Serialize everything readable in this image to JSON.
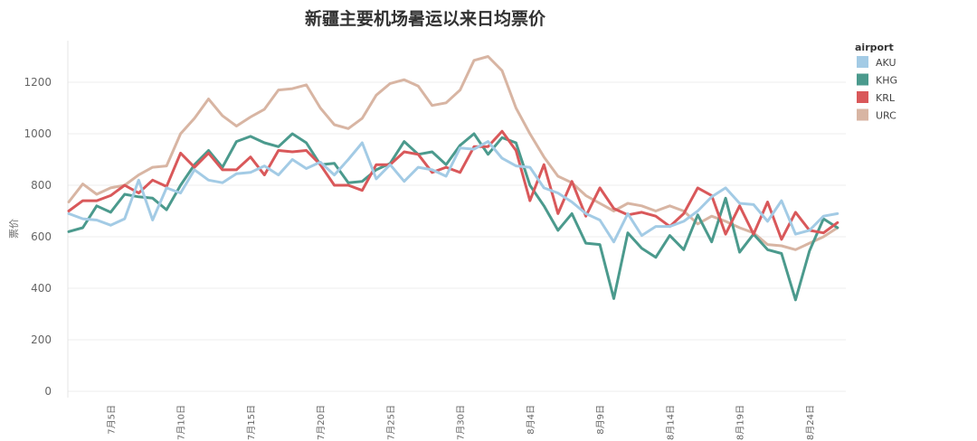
{
  "chart_data": {
    "type": "line",
    "title": "新疆主要机场暑运以来日均票价",
    "xlabel": "",
    "ylabel": "票价",
    "ylim": [
      0,
      1300
    ],
    "yticks": [
      0,
      200,
      400,
      600,
      800,
      1000,
      1200
    ],
    "x_start": "7月2日",
    "x_labels": [
      {
        "index": 3,
        "label": "7月5日"
      },
      {
        "index": 8,
        "label": "7月10日"
      },
      {
        "index": 13,
        "label": "7月15日"
      },
      {
        "index": 18,
        "label": "7月20日"
      },
      {
        "index": 23,
        "label": "7月25日"
      },
      {
        "index": 28,
        "label": "7月30日"
      },
      {
        "index": 33,
        "label": "8月4日"
      },
      {
        "index": 38,
        "label": "8月9日"
      },
      {
        "index": 43,
        "label": "8月14日"
      },
      {
        "index": 48,
        "label": "8月19日"
      },
      {
        "index": 53,
        "label": "8月24日"
      }
    ],
    "grid": true,
    "legend": {
      "title": "airport",
      "placement": "right"
    },
    "series": [
      {
        "name": "URC",
        "color": "#d8b5a3",
        "values": [
          735,
          805,
          765,
          790,
          800,
          840,
          870,
          875,
          1000,
          1060,
          1135,
          1070,
          1030,
          1065,
          1095,
          1170,
          1175,
          1190,
          1100,
          1035,
          1020,
          1060,
          1150,
          1195,
          1210,
          1185,
          1110,
          1120,
          1170,
          1285,
          1300,
          1245,
          1100,
          1000,
          910,
          835,
          810,
          760,
          730,
          700,
          730,
          720,
          700,
          720,
          700,
          650,
          680,
          660,
          635,
          615,
          570,
          565,
          550,
          575,
          600,
          635
        ]
      },
      {
        "name": "KHG",
        "color": "#4b9a8d",
        "values": [
          620,
          635,
          720,
          695,
          765,
          755,
          750,
          705,
          800,
          880,
          935,
          870,
          970,
          990,
          965,
          950,
          1000,
          965,
          880,
          885,
          810,
          815,
          860,
          885,
          970,
          920,
          930,
          880,
          955,
          1000,
          920,
          985,
          965,
          800,
          720,
          625,
          690,
          575,
          570,
          360,
          615,
          555,
          520,
          605,
          550,
          685,
          580,
          750,
          540,
          610,
          550,
          535,
          355,
          545,
          670,
          635
        ]
      },
      {
        "name": "KRL",
        "color": "#d9585a",
        "values": [
          700,
          740,
          740,
          760,
          800,
          770,
          820,
          795,
          925,
          870,
          925,
          860,
          860,
          910,
          840,
          935,
          930,
          935,
          880,
          800,
          800,
          780,
          880,
          880,
          930,
          920,
          850,
          870,
          850,
          950,
          950,
          1010,
          935,
          740,
          880,
          690,
          815,
          680,
          790,
          710,
          685,
          695,
          680,
          640,
          690,
          790,
          760,
          610,
          720,
          610,
          735,
          590,
          695,
          625,
          615,
          655
        ]
      },
      {
        "name": "AKU",
        "color": "#a3cbe5",
        "values": [
          690,
          670,
          665,
          645,
          670,
          820,
          665,
          790,
          770,
          860,
          820,
          810,
          845,
          850,
          875,
          840,
          900,
          865,
          890,
          840,
          900,
          965,
          825,
          880,
          815,
          870,
          860,
          835,
          945,
          940,
          970,
          905,
          875,
          870,
          790,
          770,
          735,
          690,
          665,
          580,
          690,
          605,
          640,
          640,
          660,
          700,
          755,
          790,
          730,
          725,
          660,
          740,
          610,
          625,
          680,
          690
        ]
      }
    ]
  },
  "legend_order": [
    "AKU",
    "KHG",
    "KRL",
    "URC"
  ]
}
